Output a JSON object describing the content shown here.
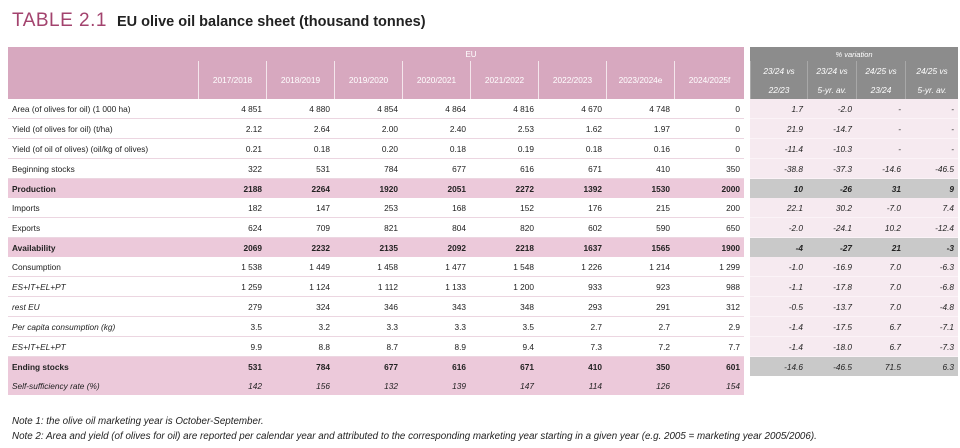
{
  "title": {
    "number": "TABLE 2.1",
    "text": "EU olive oil balance sheet (thousand tonnes)"
  },
  "header": {
    "eu_group": "EU",
    "variation_group": "% variation",
    "years": [
      "2017/2018",
      "2018/2019",
      "2019/2020",
      "2020/2021",
      "2021/2022",
      "2022/2023",
      "2023/2024e",
      "2024/2025f"
    ],
    "variation_top": [
      "23/24 vs",
      "23/24 vs",
      "24/25 vs",
      "24/25 vs"
    ],
    "variation_bottom": [
      "22/23",
      "5-yr. av.",
      "23/24",
      "5-yr. av."
    ]
  },
  "rows": [
    {
      "label": "Area (of olives for oil) (1 000 ha)",
      "values": [
        "4 851",
        "4 880",
        "4 854",
        "4 864",
        "4 816",
        "4 670",
        "4 748",
        "0"
      ],
      "variation": [
        "1.7",
        "-2.0",
        "-",
        "-"
      ]
    },
    {
      "label": "Yield (of olives for oil) (t/ha)",
      "values": [
        "2.12",
        "2.64",
        "2.00",
        "2.40",
        "2.53",
        "1.62",
        "1.97",
        "0"
      ],
      "variation": [
        "21.9",
        "-14.7",
        "-",
        "-"
      ]
    },
    {
      "label": "Yield (of oil of olives) (oil/kg of olives)",
      "values": [
        "0.21",
        "0.18",
        "0.20",
        "0.18",
        "0.19",
        "0.18",
        "0.16",
        "0"
      ],
      "variation": [
        "-11.4",
        "-10.3",
        "-",
        "-"
      ]
    },
    {
      "label": "Beginning stocks",
      "values": [
        "322",
        "531",
        "784",
        "677",
        "616",
        "671",
        "410",
        "350"
      ],
      "variation": [
        "-38.8",
        "-37.3",
        "-14.6",
        "-46.5"
      ]
    },
    {
      "label": "Production",
      "values": [
        "2188",
        "2264",
        "1920",
        "2051",
        "2272",
        "1392",
        "1530",
        "2000"
      ],
      "variation": [
        "10",
        "-26",
        "31",
        "9"
      ]
    },
    {
      "label": "Imports",
      "values": [
        "182",
        "147",
        "253",
        "168",
        "152",
        "176",
        "215",
        "200"
      ],
      "variation": [
        "22.1",
        "30.2",
        "-7.0",
        "7.4"
      ]
    },
    {
      "label": "Exports",
      "values": [
        "624",
        "709",
        "821",
        "804",
        "820",
        "602",
        "590",
        "650"
      ],
      "variation": [
        "-2.0",
        "-24.1",
        "10.2",
        "-12.4"
      ]
    },
    {
      "label": "Availability",
      "values": [
        "2069",
        "2232",
        "2135",
        "2092",
        "2218",
        "1637",
        "1565",
        "1900"
      ],
      "variation": [
        "-4",
        "-27",
        "21",
        "-3"
      ]
    },
    {
      "label": "Consumption",
      "values": [
        "1 538",
        "1 449",
        "1 458",
        "1 477",
        "1 548",
        "1 226",
        "1 214",
        "1 299"
      ],
      "variation": [
        "-1.0",
        "-16.9",
        "7.0",
        "-6.3"
      ]
    },
    {
      "label": "ES+IT+EL+PT",
      "values": [
        "1 259",
        "1 124",
        "1 112",
        "1 133",
        "1 200",
        "933",
        "923",
        "988"
      ],
      "variation": [
        "-1.1",
        "-17.8",
        "7.0",
        "-6.8"
      ]
    },
    {
      "label": "rest EU",
      "values": [
        "279",
        "324",
        "346",
        "343",
        "348",
        "293",
        "291",
        "312"
      ],
      "variation": [
        "-0.5",
        "-13.7",
        "7.0",
        "-4.8"
      ]
    },
    {
      "label": "Per capita consumption (kg)",
      "values": [
        "3.5",
        "3.2",
        "3.3",
        "3.3",
        "3.5",
        "2.7",
        "2.7",
        "2.9"
      ],
      "variation": [
        "-1.4",
        "-17.5",
        "6.7",
        "-7.1"
      ]
    },
    {
      "label": "ES+IT+EL+PT",
      "values": [
        "9.9",
        "8.8",
        "8.7",
        "8.9",
        "9.4",
        "7.3",
        "7.2",
        "7.7"
      ],
      "variation": [
        "-1.4",
        "-18.0",
        "6.7",
        "-7.3"
      ]
    },
    {
      "label": "Ending stocks",
      "values": [
        "531",
        "784",
        "677",
        "616",
        "671",
        "410",
        "350",
        "601"
      ],
      "variation": [
        "-14.6",
        "-46.5",
        "71.5",
        "6.3"
      ]
    },
    {
      "label": "Self-sufficiency rate (%)",
      "values": [
        "142",
        "156",
        "132",
        "139",
        "147",
        "114",
        "126",
        "154"
      ],
      "variation": [
        "",
        "",
        "",
        ""
      ]
    }
  ],
  "notes": [
    "Note 1: the olive oil marketing year is October-September.",
    "Note 2: Area and yield (of olives for oil) are reported per calendar year and attributed to the corresponding marketing year starting in a given year (e.g. 2005 = marketing year 2005/2006)."
  ],
  "colors": {
    "header_pink": "#d7a8bf",
    "highlight_pink": "#ecc9da",
    "variation_grey": "#8c8c8c",
    "title_pink": "#a3436e"
  }
}
